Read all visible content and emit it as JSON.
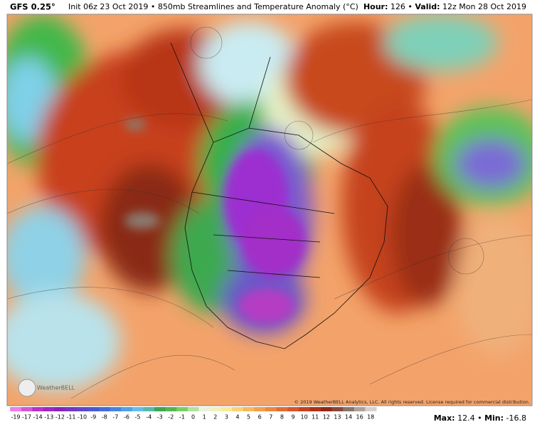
{
  "header": {
    "model": "GFS 0.25°",
    "description": "Init 06z 23 Oct 2019 • 850mb Streamlines and Temperature Anomaly (°C)",
    "hour_label": "Hour:",
    "hour": 126,
    "separator": "•",
    "valid_label": "Valid:",
    "valid": "12z Mon 28 Oct 2019"
  },
  "colorbar": {
    "labels": [
      -19,
      -17,
      -14,
      -13,
      -12,
      -11,
      -10,
      -9,
      -8,
      -7,
      -6,
      -5,
      -4,
      -3,
      -2,
      -1,
      0,
      1,
      2,
      3,
      4,
      5,
      6,
      7,
      8,
      9,
      10,
      11,
      12,
      13,
      14,
      16,
      18
    ]
  },
  "footer": {
    "copyright": "© 2019 WeatherBELL Analytics, LLC. All rights reserved. License required for commercial distribution.",
    "logo": "WeatherBELL",
    "max_label": "Max:",
    "max": 12.4,
    "min_label": "Min:",
    "min": -16.8
  }
}
